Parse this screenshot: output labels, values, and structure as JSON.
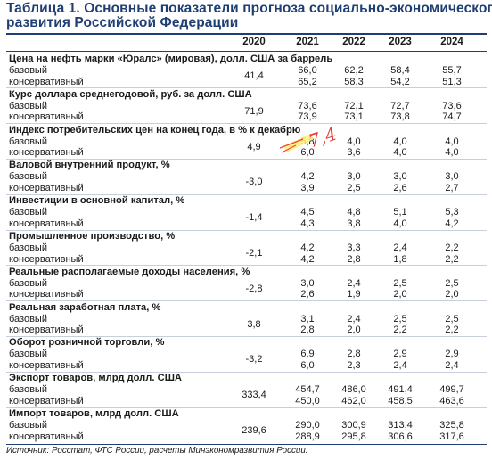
{
  "title_line1": "Таблица 1. Основные показатели прогноза социально-экономического",
  "title_line2": "развития Российской Федерации",
  "years": [
    "2020",
    "2021",
    "2022",
    "2023",
    "2024"
  ],
  "indicators": [
    {
      "title": "Цена на нефть марки «Юралс» (мировая), долл. США за баррель",
      "v2020": "41,4",
      "rows": [
        {
          "label": "базовый",
          "values": [
            "66,0",
            "62,2",
            "58,4",
            "55,7"
          ]
        },
        {
          "label": "консервативный",
          "values": [
            "65,2",
            "58,3",
            "54,2",
            "51,3"
          ]
        }
      ]
    },
    {
      "title": "Курс доллара среднегодовой, руб. за долл. США",
      "v2020": "71,9",
      "rows": [
        {
          "label": "базовый",
          "values": [
            "73,6",
            "72,1",
            "72,7",
            "73,6"
          ]
        },
        {
          "label": "консервативный",
          "values": [
            "73,9",
            "73,1",
            "73,8",
            "74,7"
          ]
        }
      ]
    },
    {
      "title": "Индекс потребительских цен на конец года, в % к декабрю",
      "v2020": "4,9",
      "rows": [
        {
          "label": "базовый",
          "values": [
            "5,8",
            "4,0",
            "4,0",
            "4,0"
          ]
        },
        {
          "label": "консервативный",
          "values": [
            "6,0",
            "3,6",
            "4,0",
            "4,0"
          ]
        }
      ]
    },
    {
      "title": "Валовой внутренний продукт, %",
      "v2020": "-3,0",
      "rows": [
        {
          "label": "базовый",
          "values": [
            "4,2",
            "3,0",
            "3,0",
            "3,0"
          ]
        },
        {
          "label": "консервативный",
          "values": [
            "3,9",
            "2,5",
            "2,6",
            "2,7"
          ]
        }
      ]
    },
    {
      "title": "Инвестиции в основной капитал, %",
      "v2020": "-1,4",
      "rows": [
        {
          "label": "базовый",
          "values": [
            "4,5",
            "4,8",
            "5,1",
            "5,3"
          ]
        },
        {
          "label": "консервативный",
          "values": [
            "4,3",
            "3,8",
            "4,0",
            "4,2"
          ]
        }
      ]
    },
    {
      "title": "Промышленное производство, %",
      "v2020": "-2,1",
      "rows": [
        {
          "label": "базовый",
          "values": [
            "4,2",
            "3,3",
            "2,4",
            "2,2"
          ]
        },
        {
          "label": "консервативный",
          "values": [
            "4,2",
            "2,8",
            "1,8",
            "2,2"
          ]
        }
      ]
    },
    {
      "title": "Реальные располагаемые доходы населения, %",
      "v2020": "-2,8",
      "rows": [
        {
          "label": "базовый",
          "values": [
            "3,0",
            "2,4",
            "2,5",
            "2,5"
          ]
        },
        {
          "label": "консервативный",
          "values": [
            "2,6",
            "1,9",
            "2,0",
            "2,0"
          ]
        }
      ]
    },
    {
      "title": "Реальная заработная плата, %",
      "v2020": "3,8",
      "rows": [
        {
          "label": "базовый",
          "values": [
            "3,1",
            "2,4",
            "2,5",
            "2,5"
          ]
        },
        {
          "label": "консервативный",
          "values": [
            "2,8",
            "2,0",
            "2,2",
            "2,2"
          ]
        }
      ]
    },
    {
      "title": "Оборот розничной торговли, %",
      "v2020": "-3,2",
      "rows": [
        {
          "label": "базовый",
          "values": [
            "6,9",
            "2,8",
            "2,9",
            "2,9"
          ]
        },
        {
          "label": "консервативный",
          "values": [
            "6,0",
            "2,3",
            "2,4",
            "2,4"
          ]
        }
      ]
    },
    {
      "title": "Экспорт товаров, млрд долл. США",
      "v2020": "333,4",
      "rows": [
        {
          "label": "базовый",
          "values": [
            "454,7",
            "486,0",
            "491,4",
            "499,7"
          ]
        },
        {
          "label": "консервативный",
          "values": [
            "450,0",
            "462,0",
            "458,5",
            "463,6"
          ]
        }
      ]
    },
    {
      "title": "Импорт товаров, млрд долл. США",
      "v2020": "239,6",
      "rows": [
        {
          "label": "базовый",
          "values": [
            "290,0",
            "300,9",
            "313,4",
            "325,8"
          ]
        },
        {
          "label": "консервативный",
          "values": [
            "288,9",
            "295,8",
            "306,6",
            "317,6"
          ]
        }
      ]
    }
  ],
  "handwritten_note": "7,4",
  "source": "Источник: Росстат, ФТС России, расчеты Минэкономразвития России.",
  "colors": {
    "title": "#1f3f73",
    "highlight": "#fff176",
    "pen": "#e53935"
  }
}
